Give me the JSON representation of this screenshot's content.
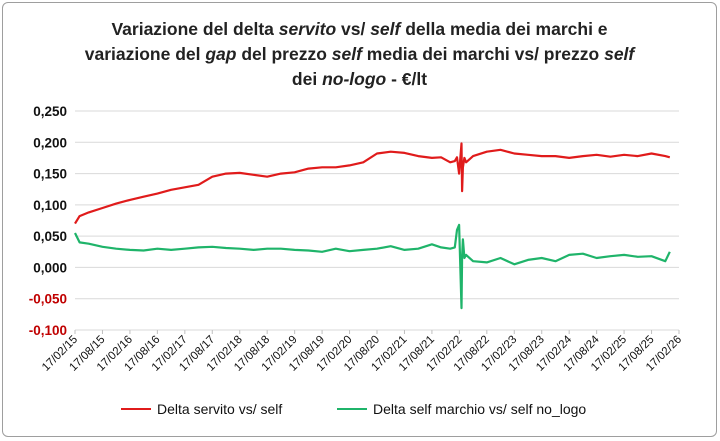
{
  "title": {
    "lines": [
      [
        {
          "t": "Variazione del delta ",
          "i": false
        },
        {
          "t": "servito",
          "i": true
        },
        {
          "t": " vs/ ",
          "i": false
        },
        {
          "t": "self",
          "i": true
        },
        {
          "t": " della media dei marchi e",
          "i": false
        }
      ],
      [
        {
          "t": "variazione del ",
          "i": false
        },
        {
          "t": "gap",
          "i": true
        },
        {
          "t": " del prezzo ",
          "i": false
        },
        {
          "t": "self",
          "i": true
        },
        {
          "t": " media dei marchi vs/ prezzo ",
          "i": false
        },
        {
          "t": "self",
          "i": true
        }
      ],
      [
        {
          "t": "dei ",
          "i": false
        },
        {
          "t": "no-logo",
          "i": true
        },
        {
          "t": " - €/lt",
          "i": false
        }
      ]
    ]
  },
  "chart_data": {
    "type": "line",
    "xlabel": "",
    "ylabel": "",
    "x_ticks": [
      "17/02/15",
      "17/08/15",
      "17/02/16",
      "17/08/16",
      "17/02/17",
      "17/08/17",
      "17/02/18",
      "17/08/18",
      "17/02/19",
      "17/08/19",
      "17/02/20",
      "17/08/20",
      "17/02/21",
      "17/08/21",
      "17/02/22",
      "17/08/22",
      "17/02/23",
      "17/08/23",
      "17/02/24",
      "17/08/24",
      "17/02/25",
      "17/08/25",
      "17/02/26"
    ],
    "y_ticks": [
      "0,250",
      "0,200",
      "0,150",
      "0,100",
      "0,050",
      "0,000",
      "-0,050",
      "-0,100"
    ],
    "y_tick_values": [
      0.25,
      0.2,
      0.15,
      0.1,
      0.05,
      0,
      -0.05,
      -0.1
    ],
    "negative_tick_color": "#c00000",
    "ylim": [
      -0.1,
      0.25
    ],
    "grid": "horizontal",
    "legend_position": "bottom",
    "series": [
      {
        "name": "Delta servito vs/ self",
        "color": "#e01b1b",
        "x": [
          "17/02/15",
          "17/03/15",
          "17/05/15",
          "17/08/15",
          "17/11/15",
          "17/02/16",
          "17/05/16",
          "17/08/16",
          "17/11/16",
          "17/02/17",
          "17/05/17",
          "17/08/17",
          "17/11/17",
          "17/02/18",
          "17/05/18",
          "17/08/18",
          "17/11/18",
          "17/02/19",
          "17/05/19",
          "17/08/19",
          "17/11/19",
          "17/02/20",
          "17/05/20",
          "17/08/20",
          "17/11/20",
          "17/02/21",
          "17/05/21",
          "17/08/21",
          "17/10/21",
          "17/12/21",
          "17/01/22",
          "01/02/22",
          "15/02/22",
          "01/03/22",
          "05/03/22",
          "10/03/22",
          "20/03/22",
          "01/04/22",
          "17/05/22",
          "17/08/22",
          "17/11/22",
          "17/02/23",
          "17/05/23",
          "17/08/23",
          "17/11/23",
          "17/02/24",
          "17/05/24",
          "17/08/24",
          "17/11/24",
          "17/02/25",
          "17/05/25",
          "17/08/25",
          "17/11/25",
          "17/12/25"
        ],
        "values": [
          0.07,
          0.082,
          0.088,
          0.095,
          0.102,
          0.108,
          0.113,
          0.118,
          0.124,
          0.128,
          0.132,
          0.145,
          0.15,
          0.151,
          0.148,
          0.145,
          0.15,
          0.152,
          0.158,
          0.16,
          0.16,
          0.163,
          0.168,
          0.182,
          0.185,
          0.183,
          0.178,
          0.175,
          0.176,
          0.168,
          0.17,
          0.176,
          0.15,
          0.198,
          0.122,
          0.16,
          0.175,
          0.168,
          0.178,
          0.185,
          0.188,
          0.182,
          0.18,
          0.178,
          0.178,
          0.175,
          0.178,
          0.18,
          0.177,
          0.18,
          0.178,
          0.182,
          0.178,
          0.176
        ]
      },
      {
        "name": "Delta self marchio vs/ self no_logo",
        "color": "#1fb46a",
        "x": [
          "17/02/15",
          "17/03/15",
          "17/05/15",
          "17/08/15",
          "17/11/15",
          "17/02/16",
          "17/05/16",
          "17/08/16",
          "17/11/16",
          "17/02/17",
          "17/05/17",
          "17/08/17",
          "17/11/17",
          "17/02/18",
          "17/05/18",
          "17/08/18",
          "17/11/18",
          "17/02/19",
          "17/05/19",
          "17/08/19",
          "17/11/19",
          "17/02/20",
          "17/05/20",
          "17/08/20",
          "17/11/20",
          "17/02/21",
          "17/05/21",
          "17/08/21",
          "17/10/21",
          "17/12/21",
          "17/01/22",
          "01/02/22",
          "15/02/22",
          "01/03/22",
          "05/03/22",
          "10/03/22",
          "20/03/22",
          "01/04/22",
          "17/05/22",
          "17/08/22",
          "17/11/22",
          "17/02/23",
          "17/05/23",
          "17/08/23",
          "17/11/23",
          "17/02/24",
          "17/05/24",
          "17/08/24",
          "17/11/24",
          "17/02/25",
          "17/05/25",
          "17/08/25",
          "17/11/25",
          "17/12/25"
        ],
        "values": [
          0.055,
          0.04,
          0.038,
          0.033,
          0.03,
          0.028,
          0.027,
          0.03,
          0.028,
          0.03,
          0.032,
          0.033,
          0.031,
          0.03,
          0.028,
          0.03,
          0.03,
          0.028,
          0.027,
          0.025,
          0.03,
          0.026,
          0.028,
          0.03,
          0.034,
          0.028,
          0.03,
          0.037,
          0.032,
          0.03,
          0.032,
          0.06,
          0.068,
          -0.065,
          0.018,
          0.045,
          0.015,
          0.02,
          0.01,
          0.008,
          0.015,
          0.005,
          0.012,
          0.015,
          0.01,
          0.02,
          0.022,
          0.015,
          0.018,
          0.02,
          0.017,
          0.018,
          0.01,
          0.025
        ]
      }
    ]
  },
  "legend": {
    "servito_label": "Delta servito vs/ self",
    "self_label": "Delta self marchio vs/ self no_logo"
  }
}
